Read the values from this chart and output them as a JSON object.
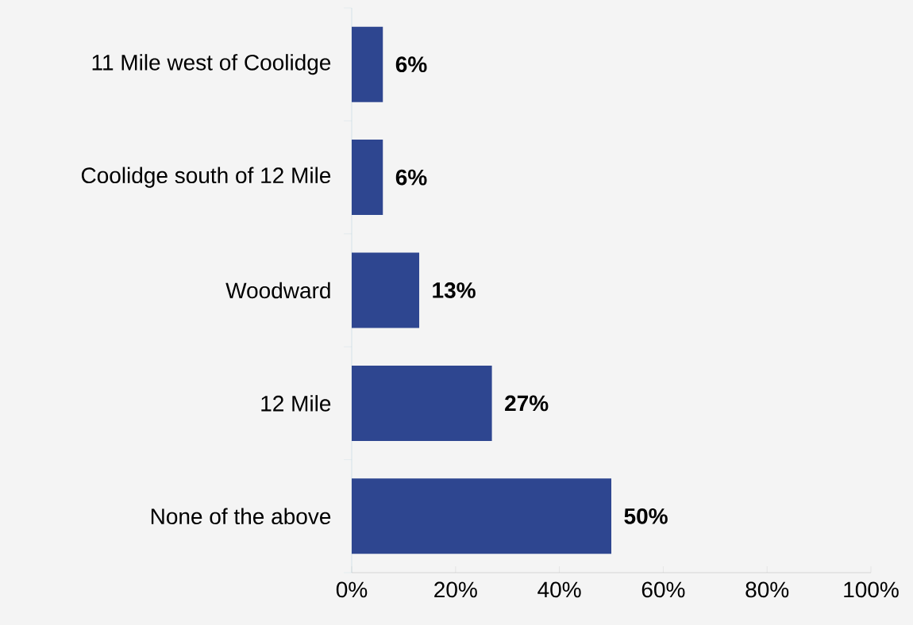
{
  "chart_data": {
    "type": "bar",
    "orientation": "horizontal",
    "categories": [
      "11 Mile west of Coolidge",
      "Coolidge south of 12 Mile",
      "Woodward",
      "12 Mile",
      "None of the above"
    ],
    "values": [
      6,
      6,
      13,
      27,
      50
    ],
    "value_labels": [
      "6%",
      "6%",
      "13%",
      "27%",
      "50%"
    ],
    "color": "#2e4690",
    "xlim": [
      0,
      100
    ],
    "xticks": [
      {
        "value": 0,
        "label": "0%"
      },
      {
        "value": 20,
        "label": "20%"
      },
      {
        "value": 40,
        "label": "40%"
      },
      {
        "value": 60,
        "label": "60%"
      },
      {
        "value": 80,
        "label": "80%"
      },
      {
        "value": 100,
        "label": "100%"
      }
    ],
    "grid": false
  }
}
